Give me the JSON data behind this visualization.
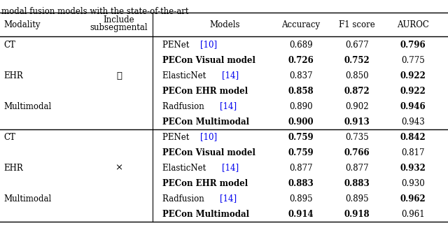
{
  "title_text": "modal fusion models with the state-of-the-art",
  "section1": {
    "rows": [
      {
        "modality": "CT",
        "subsegmental": "",
        "model": "PENet",
        "ref": "[10]",
        "accuracy": "0.689",
        "f1": "0.677",
        "auroc": "0.796",
        "bold_model": false,
        "bold_accuracy": false,
        "bold_f1": false,
        "bold_auroc": true
      },
      {
        "modality": "",
        "subsegmental": "",
        "model": "PECon Visual model",
        "ref": "",
        "accuracy": "0.726",
        "f1": "0.752",
        "auroc": "0.775",
        "bold_model": true,
        "bold_accuracy": true,
        "bold_f1": true,
        "bold_auroc": false
      },
      {
        "modality": "EHR",
        "subsegmental": "✓",
        "model": "ElasticNet",
        "ref": "[14]",
        "accuracy": "0.837",
        "f1": "0.850",
        "auroc": "0.922",
        "bold_model": false,
        "bold_accuracy": false,
        "bold_f1": false,
        "bold_auroc": true
      },
      {
        "modality": "",
        "subsegmental": "",
        "model": "PECon EHR model",
        "ref": "",
        "accuracy": "0.858",
        "f1": "0.872",
        "auroc": "0.922",
        "bold_model": true,
        "bold_accuracy": true,
        "bold_f1": true,
        "bold_auroc": true
      },
      {
        "modality": "Multimodal",
        "subsegmental": "",
        "model": "Radfusion",
        "ref": "[14]",
        "accuracy": "0.890",
        "f1": "0.902",
        "auroc": "0.946",
        "bold_model": false,
        "bold_accuracy": false,
        "bold_f1": false,
        "bold_auroc": true
      },
      {
        "modality": "",
        "subsegmental": "",
        "model": "PECon Multimodal",
        "ref": "",
        "accuracy": "0.900",
        "f1": "0.913",
        "auroc": "0.943",
        "bold_model": true,
        "bold_accuracy": true,
        "bold_f1": true,
        "bold_auroc": false
      }
    ]
  },
  "section2": {
    "rows": [
      {
        "modality": "CT",
        "subsegmental": "",
        "model": "PENet",
        "ref": "[10]",
        "accuracy": "0.759",
        "f1": "0.735",
        "auroc": "0.842",
        "bold_model": false,
        "bold_accuracy": true,
        "bold_f1": false,
        "bold_auroc": true
      },
      {
        "modality": "",
        "subsegmental": "",
        "model": "PECon Visual model",
        "ref": "",
        "accuracy": "0.759",
        "f1": "0.766",
        "auroc": "0.817",
        "bold_model": true,
        "bold_accuracy": true,
        "bold_f1": true,
        "bold_auroc": false
      },
      {
        "modality": "EHR",
        "subsegmental": "×",
        "model": "ElasticNet",
        "ref": "[14]",
        "accuracy": "0.877",
        "f1": "0.877",
        "auroc": "0.932",
        "bold_model": false,
        "bold_accuracy": false,
        "bold_f1": false,
        "bold_auroc": true
      },
      {
        "modality": "",
        "subsegmental": "",
        "model": "PECon EHR model",
        "ref": "",
        "accuracy": "0.883",
        "f1": "0.883",
        "auroc": "0.930",
        "bold_model": true,
        "bold_accuracy": true,
        "bold_f1": true,
        "bold_auroc": false
      },
      {
        "modality": "Multimodal",
        "subsegmental": "",
        "model": "Radfusion",
        "ref": "[14]",
        "accuracy": "0.895",
        "f1": "0.895",
        "auroc": "0.962",
        "bold_model": false,
        "bold_accuracy": false,
        "bold_f1": false,
        "bold_auroc": true
      },
      {
        "modality": "",
        "subsegmental": "",
        "model": "PECon Multimodal",
        "ref": "",
        "accuracy": "0.914",
        "f1": "0.918",
        "auroc": "0.961",
        "bold_model": true,
        "bold_accuracy": true,
        "bold_f1": true,
        "bold_auroc": false
      }
    ]
  },
  "ref_color": "#0000ee",
  "text_color": "#000000",
  "bg_color": "#ffffff",
  "font_size": 8.5
}
